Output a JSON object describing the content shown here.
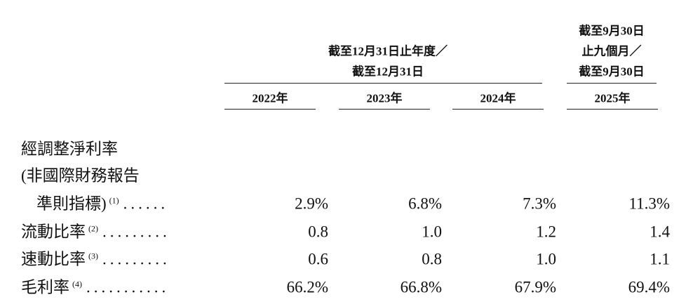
{
  "header": {
    "group_1": [
      "截至12月31日止年度／",
      "截至12月31日"
    ],
    "group_2": [
      "截至9月30日",
      "止九個月／",
      "截至9月30日"
    ],
    "years": [
      "2022年",
      "2023年",
      "2024年",
      "2025年"
    ]
  },
  "rows": [
    {
      "label": [
        "經調整淨利率",
        "(非國際財務報告",
        "準則指標)"
      ],
      "note": "(1)",
      "leader": "......",
      "values": [
        "2.9%",
        "6.8%",
        "7.3%",
        "11.3%"
      ]
    },
    {
      "label": [
        "流動比率"
      ],
      "note": "(2)",
      "leader": ".........",
      "values": [
        "0.8",
        "1.0",
        "1.2",
        "1.4"
      ]
    },
    {
      "label": [
        "速動比率"
      ],
      "note": "(3)",
      "leader": ".........",
      "values": [
        "0.6",
        "0.8",
        "1.0",
        "1.1"
      ]
    },
    {
      "label": [
        "毛利率"
      ],
      "note": "(4)",
      "leader": "...........",
      "values": [
        "66.2%",
        "66.8%",
        "67.9%",
        "69.4%"
      ]
    }
  ]
}
